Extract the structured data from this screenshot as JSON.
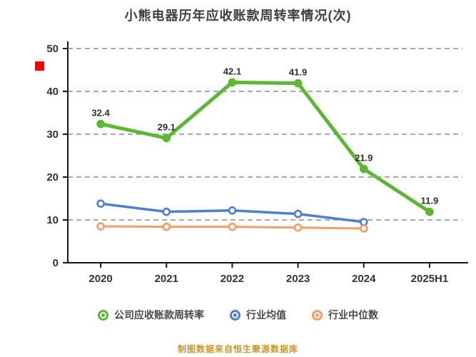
{
  "chart_data": {
    "type": "line",
    "title": "小熊电器历年应收账款周转率情况(次)",
    "categories": [
      "2020",
      "2021",
      "2022",
      "2023",
      "2024",
      "2025H1"
    ],
    "series": [
      {
        "name": "公司应收账款周转率",
        "color": "#5cb832",
        "values": [
          32.4,
          29.1,
          42.1,
          41.9,
          21.9,
          11.9
        ],
        "labels_visible": true,
        "solid_markers": true,
        "line_width": 5
      },
      {
        "name": "行业均值",
        "color": "#4f7dd4",
        "values": [
          13.8,
          11.9,
          12.2,
          11.4,
          9.5
        ],
        "labels_visible": false,
        "solid_markers": false,
        "line_width": 3.5
      },
      {
        "name": "行业中位数",
        "color": "#f79b67",
        "values": [
          8.5,
          8.4,
          8.4,
          8.2,
          8.0
        ],
        "labels_visible": false,
        "solid_markers": false,
        "line_width": 3
      }
    ],
    "ylim": [
      0,
      50
    ],
    "yticks": [
      0,
      10,
      20,
      30,
      40,
      50
    ],
    "grid": "horizontal-dashed",
    "legend_position": "bottom",
    "source_note": "制图数据来自恒生聚源数据库"
  }
}
